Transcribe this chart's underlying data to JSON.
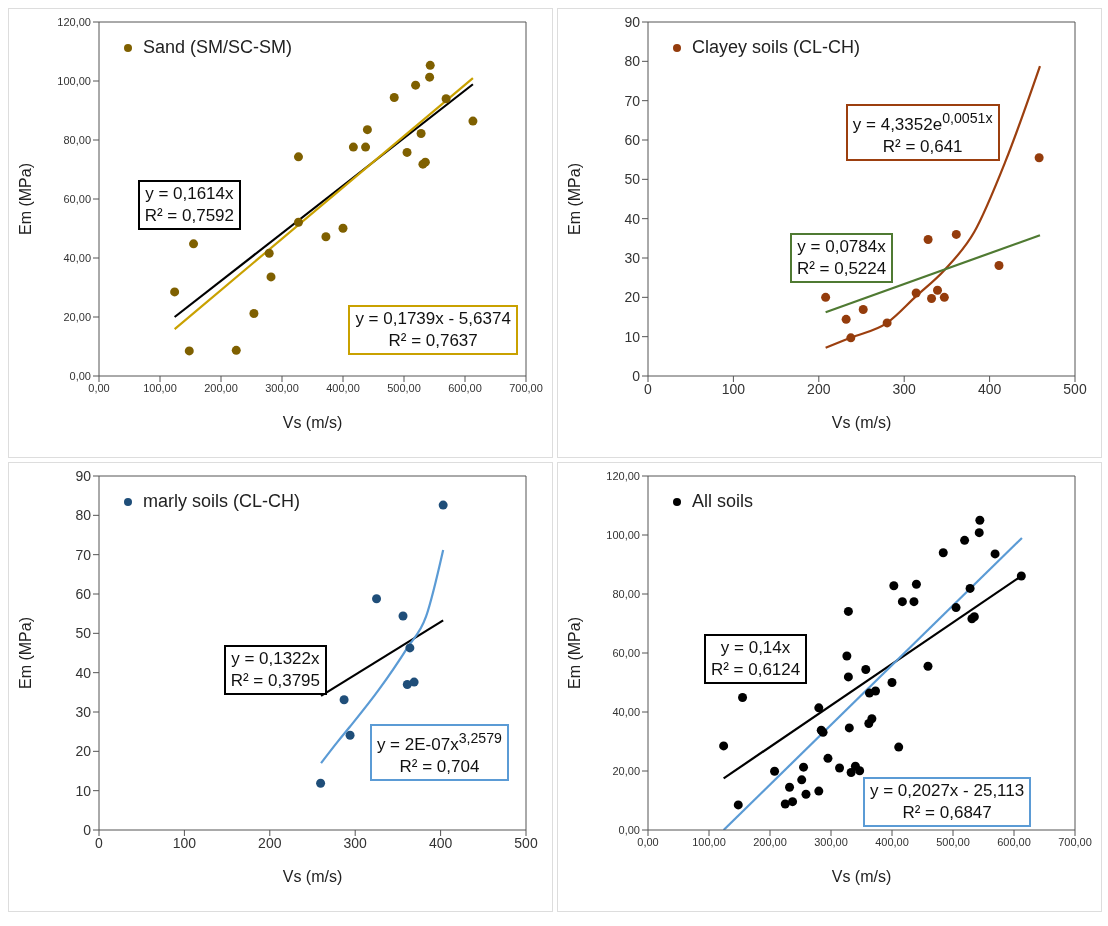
{
  "chart_data": [
    {
      "type": "scatter",
      "xlabel": "Vs (m/s)",
      "ylabel": "Em (MPa)",
      "legend": "top left",
      "marker": "circle",
      "line_style": "solid",
      "grid": false,
      "xlim": [
        0,
        700
      ],
      "xticks": [
        {
          "value": 0,
          "label": "0,00"
        },
        {
          "value": 100,
          "label": "100,00"
        },
        {
          "value": 200,
          "label": "200,00"
        },
        {
          "value": 300,
          "label": "300,00"
        },
        {
          "value": 400,
          "label": "400,00"
        },
        {
          "value": 500,
          "label": "500,00"
        },
        {
          "value": 600,
          "label": "600,00"
        },
        {
          "value": 700,
          "label": "700,00"
        }
      ],
      "ylim": [
        0,
        120
      ],
      "yticks": [
        {
          "value": 0,
          "label": "0,00"
        },
        {
          "value": 20,
          "label": "20,00"
        },
        {
          "value": 40,
          "label": "40,00"
        },
        {
          "value": 60,
          "label": "60,00"
        },
        {
          "value": 80,
          "label": "80,00"
        },
        {
          "value": 100,
          "label": "100,00"
        },
        {
          "value": 120,
          "label": "120,00"
        }
      ],
      "series": [
        {
          "name": "Sand (SM/SC-SM)",
          "color": "#7f6000",
          "x": [
            124,
            155,
            148,
            225,
            254,
            279,
            282,
            327,
            327,
            372,
            400,
            417,
            437,
            440,
            484,
            505,
            519,
            528,
            531,
            535,
            542,
            543,
            569,
            613
          ],
          "values": [
            28.5,
            44.8,
            8.5,
            8.7,
            21.2,
            41.6,
            33.6,
            74.3,
            52.1,
            47.2,
            50.1,
            77.6,
            77.6,
            83.5,
            94.4,
            75.8,
            98.6,
            82.2,
            71.8,
            72.5,
            101.3,
            105.3,
            94.0,
            86.4
          ]
        },
        {
          "type": "line",
          "marker": "none",
          "color": "#000000",
          "x": [
            124,
            613
          ],
          "values": [
            20.0,
            98.9
          ]
        },
        {
          "type": "line",
          "marker": "none",
          "color": "#c9a100",
          "x": [
            124,
            613
          ],
          "values": [
            15.9,
            101.0
          ]
        }
      ],
      "annotations": [
        "y = 0,1614x\nR² = 0,7592",
        "y = 0,1739x - 5,6374\nR² = 0,7637"
      ]
    },
    {
      "type": "scatter",
      "xlabel": "Vs (m/s)",
      "ylabel": "Em (MPa)",
      "legend": "top left",
      "marker": "circle",
      "line_style": "solid",
      "grid": false,
      "xlim": [
        0,
        500
      ],
      "xticks": [
        0,
        100,
        200,
        300,
        400,
        500
      ],
      "ylim": [
        0,
        90
      ],
      "yticks": [
        0,
        10,
        20,
        30,
        40,
        50,
        60,
        70,
        80,
        90
      ],
      "series": [
        {
          "name": "Clayey soils (CL-CH)",
          "color": "#943c0c",
          "x": [
            208,
            232,
            237.5,
            252,
            280,
            314,
            328,
            332,
            339,
            347,
            361,
            411,
            458
          ],
          "values": [
            20.0,
            14.4,
            9.7,
            16.9,
            13.5,
            21.1,
            34.7,
            19.7,
            21.8,
            20.0,
            36.0,
            28.1,
            55.5
          ]
        },
        {
          "type": "line",
          "marker": "none",
          "color": "#9c3f0f",
          "x": [
            208,
            237,
            280,
            314,
            347,
            382,
            419,
            459
          ],
          "values": [
            7.2,
            9.7,
            13.5,
            20.3,
            26.9,
            36.6,
            54.8,
            78.8
          ]
        },
        {
          "type": "line",
          "marker": "none",
          "color": "#4f7a32",
          "x": [
            208,
            459
          ],
          "values": [
            16.2,
            35.8
          ]
        }
      ],
      "annotations": [
        "y = 4,3352e$^{0,0051x}$\nR² = 0,641",
        "y = 0,0784x\nR² = 0,5224"
      ]
    },
    {
      "type": "scatter",
      "xlabel": "Vs (m/s)",
      "ylabel": "Em (MPa)",
      "legend": "top left",
      "marker": "circle",
      "line_style": "solid",
      "grid": false,
      "xlim": [
        0,
        500
      ],
      "xticks": [
        0,
        100,
        200,
        300,
        400,
        500
      ],
      "ylim": [
        0,
        90
      ],
      "yticks": [
        0,
        10,
        20,
        30,
        40,
        50,
        60,
        70,
        80,
        90
      ],
      "series": [
        {
          "name": "marly soils (CL-CH)",
          "color": "#1f4e79",
          "x": [
            259.5,
            287,
            294,
            325,
            356,
            364,
            361,
            369,
            403
          ],
          "values": [
            11.9,
            33.1,
            24.1,
            58.8,
            54.4,
            46.3,
            37.0,
            37.6,
            82.6
          ]
        },
        {
          "type": "line",
          "marker": "none",
          "color": "#000000",
          "x": [
            260,
            403
          ],
          "values": [
            34.1,
            53.3
          ]
        },
        {
          "type": "line",
          "marker": "none",
          "color": "#5b9bd5",
          "x": [
            260,
            280,
            294,
            327.5,
            361,
            383,
            403
          ],
          "values": [
            17.0,
            22.6,
            26.3,
            35.6,
            46.3,
            54.3,
            71.2
          ]
        }
      ],
      "annotations": [
        "y = 0,1322x\nR² = 0,3795",
        "y = 2E-07x$^{3,2579}$\nR² = 0,704"
      ]
    },
    {
      "type": "scatter",
      "xlabel": "Vs (m/s)",
      "ylabel": "Em (MPa)",
      "legend": "top left",
      "marker": "circle",
      "line_style": "solid",
      "grid": false,
      "xlim": [
        0,
        700
      ],
      "xticks": [
        {
          "value": 0,
          "label": "0,00"
        },
        {
          "value": 100,
          "label": "100,00"
        },
        {
          "value": 200,
          "label": "200,00"
        },
        {
          "value": 300,
          "label": "300,00"
        },
        {
          "value": 400,
          "label": "400,00"
        },
        {
          "value": 500,
          "label": "500,00"
        },
        {
          "value": 600,
          "label": "600,00"
        },
        {
          "value": 700,
          "label": "700,00"
        }
      ],
      "ylim": [
        0,
        120
      ],
      "yticks": [
        {
          "value": 0,
          "label": "0,00"
        },
        {
          "value": 20,
          "label": "20,00"
        },
        {
          "value": 40,
          "label": "40,00"
        },
        {
          "value": 60,
          "label": "60,00"
        },
        {
          "value": 80,
          "label": "80,00"
        },
        {
          "value": 100,
          "label": "100,00"
        },
        {
          "value": 120,
          "label": "120,00"
        }
      ],
      "series": [
        {
          "name": "All soils",
          "color": "#000000",
          "x": [
            124,
            155,
            148,
            207.5,
            225,
            232,
            237,
            252,
            255,
            259,
            280,
            280,
            284,
            287,
            295,
            314,
            326,
            328.5,
            328.5,
            330,
            333,
            340,
            347,
            357,
            363,
            362,
            367,
            373,
            400,
            403,
            411,
            417,
            436,
            440,
            459,
            484,
            505,
            519,
            528,
            531,
            535,
            543,
            544,
            569,
            612
          ],
          "values": [
            28.5,
            44.9,
            8.5,
            19.9,
            8.8,
            14.5,
            9.6,
            17.0,
            21.3,
            12.1,
            13.2,
            41.4,
            33.8,
            33.1,
            24.3,
            21.0,
            59.0,
            74.1,
            51.9,
            34.6,
            19.5,
            21.6,
            20.1,
            54.4,
            46.4,
            36.1,
            37.7,
            47.1,
            50.0,
            82.8,
            28.1,
            77.4,
            77.4,
            83.3,
            55.5,
            94.0,
            75.4,
            98.2,
            81.9,
            71.6,
            72.3,
            100.8,
            105.0,
            93.6,
            86.1
          ]
        },
        {
          "type": "line",
          "marker": "none",
          "color": "#000000",
          "x": [
            124,
            612
          ],
          "values": [
            17.5,
            86.1
          ]
        },
        {
          "type": "line",
          "marker": "none",
          "color": "#5b9bd5",
          "x": [
            124,
            613
          ],
          "values": [
            0,
            99.0
          ]
        }
      ],
      "annotations": [
        "y = 0,14x\nR² = 0,6124",
        "y = 0,2027x - 25,113\nR² = 0,6847"
      ]
    }
  ]
}
